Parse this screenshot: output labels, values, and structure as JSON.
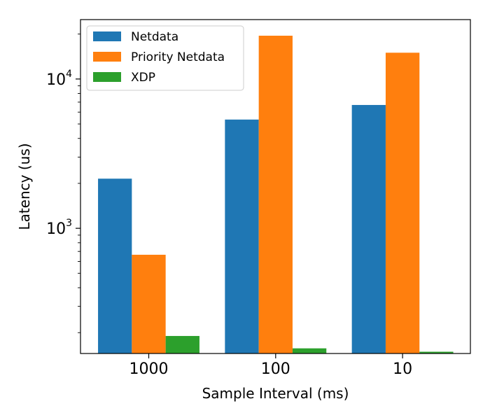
{
  "chart_data": {
    "type": "bar",
    "xlabel": "Sample Interval (ms)",
    "ylabel": "Latency (us)",
    "yscale": "log",
    "ylim": [
      145,
      25000
    ],
    "y_ticks": [
      {
        "value": 1000,
        "base": "10",
        "exp": "3"
      },
      {
        "value": 10000,
        "base": "10",
        "exp": "4"
      }
    ],
    "categories": [
      "1000",
      "100",
      "10"
    ],
    "legend_position": "top-left",
    "grid": false,
    "series": [
      {
        "name": "Netdata",
        "color": "#1f77b4",
        "values": [
          2150,
          5350,
          6700
        ]
      },
      {
        "name": "Priority Netdata",
        "color": "#ff7f0e",
        "values": [
          665,
          19500,
          15000
        ]
      },
      {
        "name": "XDP",
        "color": "#2ca02c",
        "values": [
          190,
          157,
          149
        ]
      }
    ]
  }
}
